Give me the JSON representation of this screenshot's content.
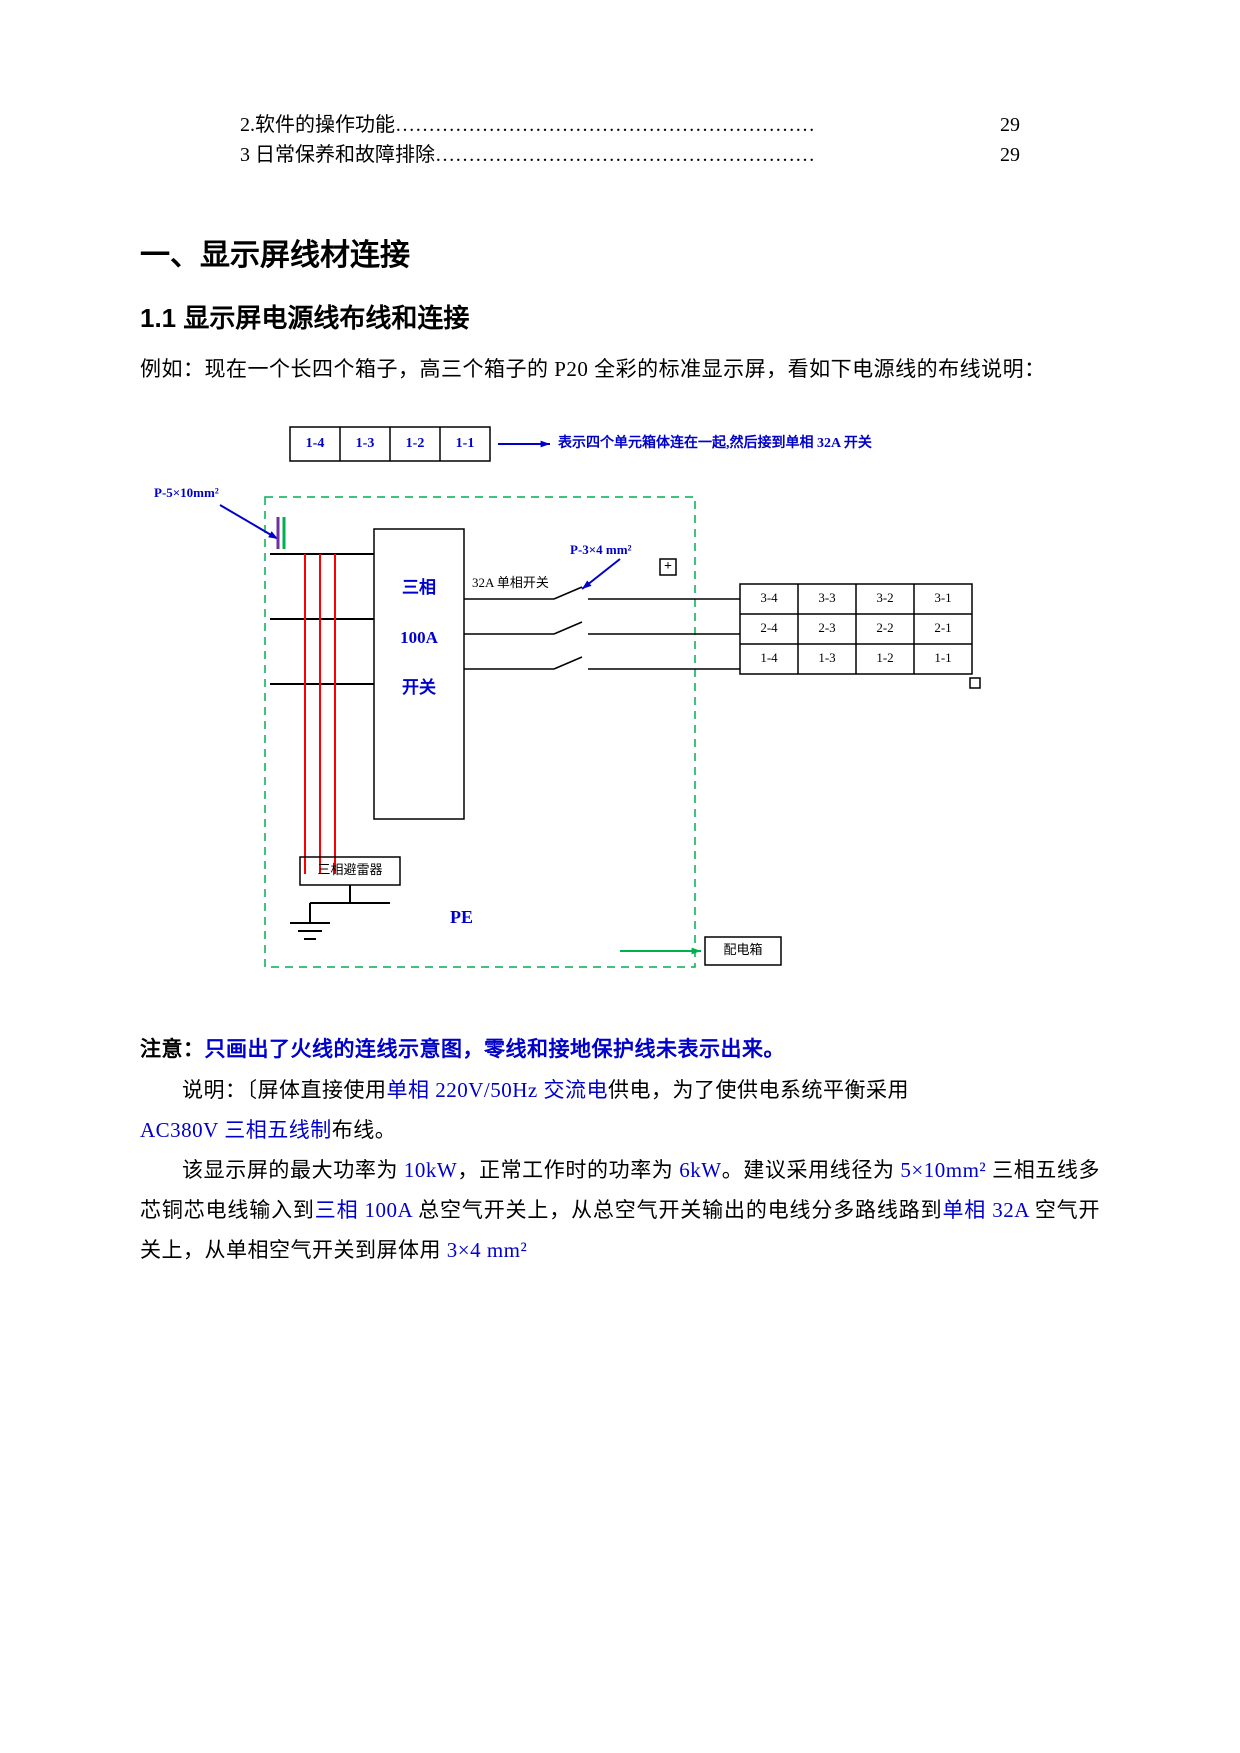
{
  "refs": [
    {
      "label": "2.软件的操作功能",
      "page": "29"
    },
    {
      "label": "3 日常保养和故障排除",
      "page": "29"
    }
  ],
  "heading1": "一、显示屏线材连接",
  "heading2": "1.1 显示屏电源线布线和连接",
  "intro": "例如：现在一个长四个箱子，高三个箱子的 P20 全彩的标准显示屏，看如下电源线的布线说明：",
  "diagram": {
    "box_border": "#000000",
    "dash_border": "#00b050",
    "arrow_blue": "#0000cc",
    "arrow_green": "#00b050",
    "red_line": "#ff0000",
    "text_blue": "#0000cc",
    "text_black": "#000000",
    "font_main": 14,
    "font_small": 13,
    "top_cells": [
      "1-4",
      "1-3",
      "1-2",
      "1-1"
    ],
    "top_arrow_label": "表示四个单元箱体连在一起,然后接到单相 32A 开关",
    "left_top_label": "P-5×10mm²",
    "center_lines": [
      "三相",
      "100A",
      "开关"
    ],
    "center_right_label": "32A 单相开关",
    "right_top_label": "P-3×4 mm²",
    "right_cells": [
      [
        "3-4",
        "3-3",
        "3-2",
        "3-1"
      ],
      [
        "2-4",
        "2-3",
        "2-2",
        "2-1"
      ],
      [
        "1-4",
        "1-3",
        "1-2",
        "1-1"
      ]
    ],
    "bottom_left_box": "三相避雷器",
    "pe_label": "PE",
    "bottom_right_box": "配电箱"
  },
  "note_label": "注意：",
  "note_text": "只画出了火线的连线示意图，零线和接地保护线未表示出来。",
  "p1_a": "说明：〔屏体直接使用",
  "p1_b": "单相 220V/50Hz 交流电",
  "p1_c": "供电，为了使供电系统平衡采用",
  "p2_a": "AC380V 三相五线制",
  "p2_b": "布线。",
  "p3_a": "该显示屏的最大功率为 ",
  "p3_b": "10kW",
  "p3_c": "，正常工作时的功率为 ",
  "p3_d": "6kW",
  "p3_e": "。建议采用线径为 ",
  "p3_f": "5×10mm²",
  "p3_g": " 三相五线多芯铜芯电线输入到",
  "p3_h": "三相 100A",
  "p3_i": " 总空气开关上，从总空气开关输出的电线分多路线路到",
  "p3_j": "单相 32A",
  "p3_k": " 空气开关上，从单相空气开关到屏体用 ",
  "p3_l": "3×4 mm²"
}
